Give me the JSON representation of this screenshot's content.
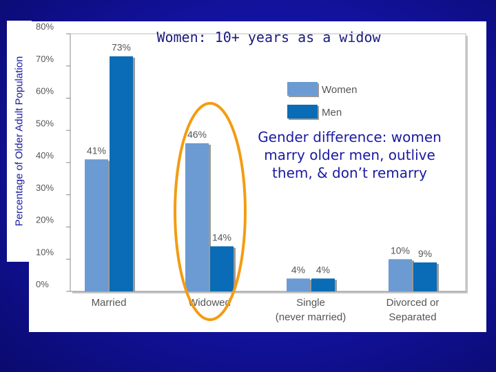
{
  "y_axis_title": "Percentage of Older Adult Population",
  "annotations": {
    "top": "Women: 10+ years as a widow",
    "gender": "Gender difference: women marry older men, outlive them, & don’t remarry"
  },
  "colors": {
    "women": "#6b9bd2",
    "men": "#0a6cb6",
    "highlight": "#f39c12"
  },
  "chart_data": {
    "type": "bar",
    "categories": [
      [
        "Married"
      ],
      [
        "Widowed"
      ],
      [
        "Single",
        "(never married)"
      ],
      [
        "Divorced or",
        "Separated"
      ]
    ],
    "series": [
      {
        "name": "Women",
        "values": [
          41,
          46,
          4,
          10
        ]
      },
      {
        "name": "Men",
        "values": [
          73,
          14,
          4,
          9
        ]
      }
    ],
    "data_labels": [
      [
        "41%",
        "46%",
        "4%",
        "10%"
      ],
      [
        "73%",
        "14%",
        "4%",
        "9%"
      ]
    ],
    "y_ticks": [
      0,
      10,
      20,
      30,
      40,
      50,
      60,
      70,
      80
    ],
    "y_tick_labels": [
      "0%",
      "10%",
      "20%",
      "30%",
      "40%",
      "50%",
      "60%",
      "70%",
      "80%"
    ],
    "ylim": [
      0,
      80
    ],
    "legend_placement": "top-right",
    "highlighted_category": "Widowed"
  }
}
